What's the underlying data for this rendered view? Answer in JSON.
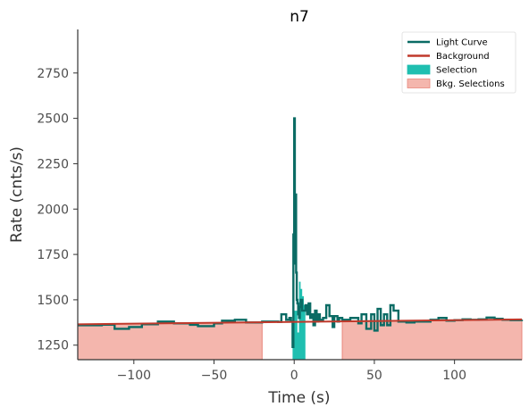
{
  "chart_data": {
    "type": "line",
    "title": "n7",
    "xlabel": "Time (s)",
    "ylabel": "Rate (cnts/s)",
    "xlim": [
      -135,
      142
    ],
    "ylim": [
      1170,
      2990
    ],
    "xticks": [
      -100,
      -50,
      0,
      50,
      100
    ],
    "xtick_labels": [
      "−100",
      "−50",
      "0",
      "50",
      "100"
    ],
    "yticks": [
      1250,
      1500,
      1750,
      2000,
      2250,
      2500,
      2750
    ],
    "ytick_labels": [
      "1250",
      "1500",
      "1750",
      "2000",
      "2250",
      "2500",
      "2750"
    ],
    "legend_position": "top-right",
    "legend": [
      {
        "label": "Light Curve",
        "kind": "line",
        "color": "#0a6b64"
      },
      {
        "label": "Background",
        "kind": "line",
        "color": "#c0392b"
      },
      {
        "label": "Selection",
        "kind": "patch",
        "color": "#1fbfb0"
      },
      {
        "label": "Bkg. Selections",
        "kind": "patch",
        "color": "#f4b6ad"
      }
    ],
    "colors": {
      "light_curve": "#0a6b64",
      "background": "#c0392b",
      "selection": "#1fbfb0",
      "bkg_fill": "#f4b6ad",
      "bkg_edge": "#e8877c"
    },
    "background_model": {
      "x": [
        -135,
        142
      ],
      "y": [
        1365,
        1392
      ]
    },
    "bkg_selections": [
      [
        -135,
        -20
      ],
      [
        30,
        142
      ]
    ],
    "selection": {
      "x": [
        -1,
        2,
        3,
        4,
        5,
        6,
        7
      ],
      "y": [
        1440,
        1320,
        1600,
        1560,
        1520,
        1470,
        1440
      ]
    },
    "light_curve": {
      "x": [
        -135,
        -120,
        -112,
        -103,
        -95,
        -85,
        -75,
        -65,
        -60,
        -50,
        -45,
        -37,
        -30,
        -20,
        -10,
        -8,
        -5,
        -3,
        -2,
        -1,
        -0.5,
        0,
        0.4,
        0.8,
        1.2,
        1.6,
        2,
        2.5,
        3,
        3.5,
        4,
        5,
        6,
        7,
        8,
        9,
        10,
        11,
        12,
        13,
        14,
        15,
        16,
        18,
        20,
        22,
        24,
        25,
        27,
        28,
        30,
        35,
        40,
        42,
        45,
        48,
        50,
        52,
        54,
        56,
        58,
        60,
        62,
        65,
        70,
        75,
        80,
        85,
        90,
        95,
        100,
        105,
        110,
        115,
        120,
        125,
        130,
        135,
        142
      ],
      "y": [
        1360,
        1363,
        1340,
        1350,
        1365,
        1380,
        1370,
        1362,
        1355,
        1370,
        1385,
        1390,
        1375,
        1380,
        1378,
        1420,
        1390,
        1400,
        1380,
        1240,
        1860,
        2500,
        1700,
        2080,
        1650,
        1500,
        1480,
        1420,
        1400,
        1460,
        1500,
        1440,
        1440,
        1470,
        1420,
        1480,
        1400,
        1420,
        1360,
        1440,
        1380,
        1420,
        1390,
        1400,
        1470,
        1410,
        1350,
        1410,
        1380,
        1400,
        1390,
        1400,
        1370,
        1420,
        1340,
        1420,
        1330,
        1450,
        1360,
        1420,
        1360,
        1470,
        1440,
        1380,
        1375,
        1380,
        1380,
        1390,
        1400,
        1385,
        1388,
        1392,
        1390,
        1392,
        1402,
        1395,
        1390,
        1388,
        1390
      ]
    }
  }
}
